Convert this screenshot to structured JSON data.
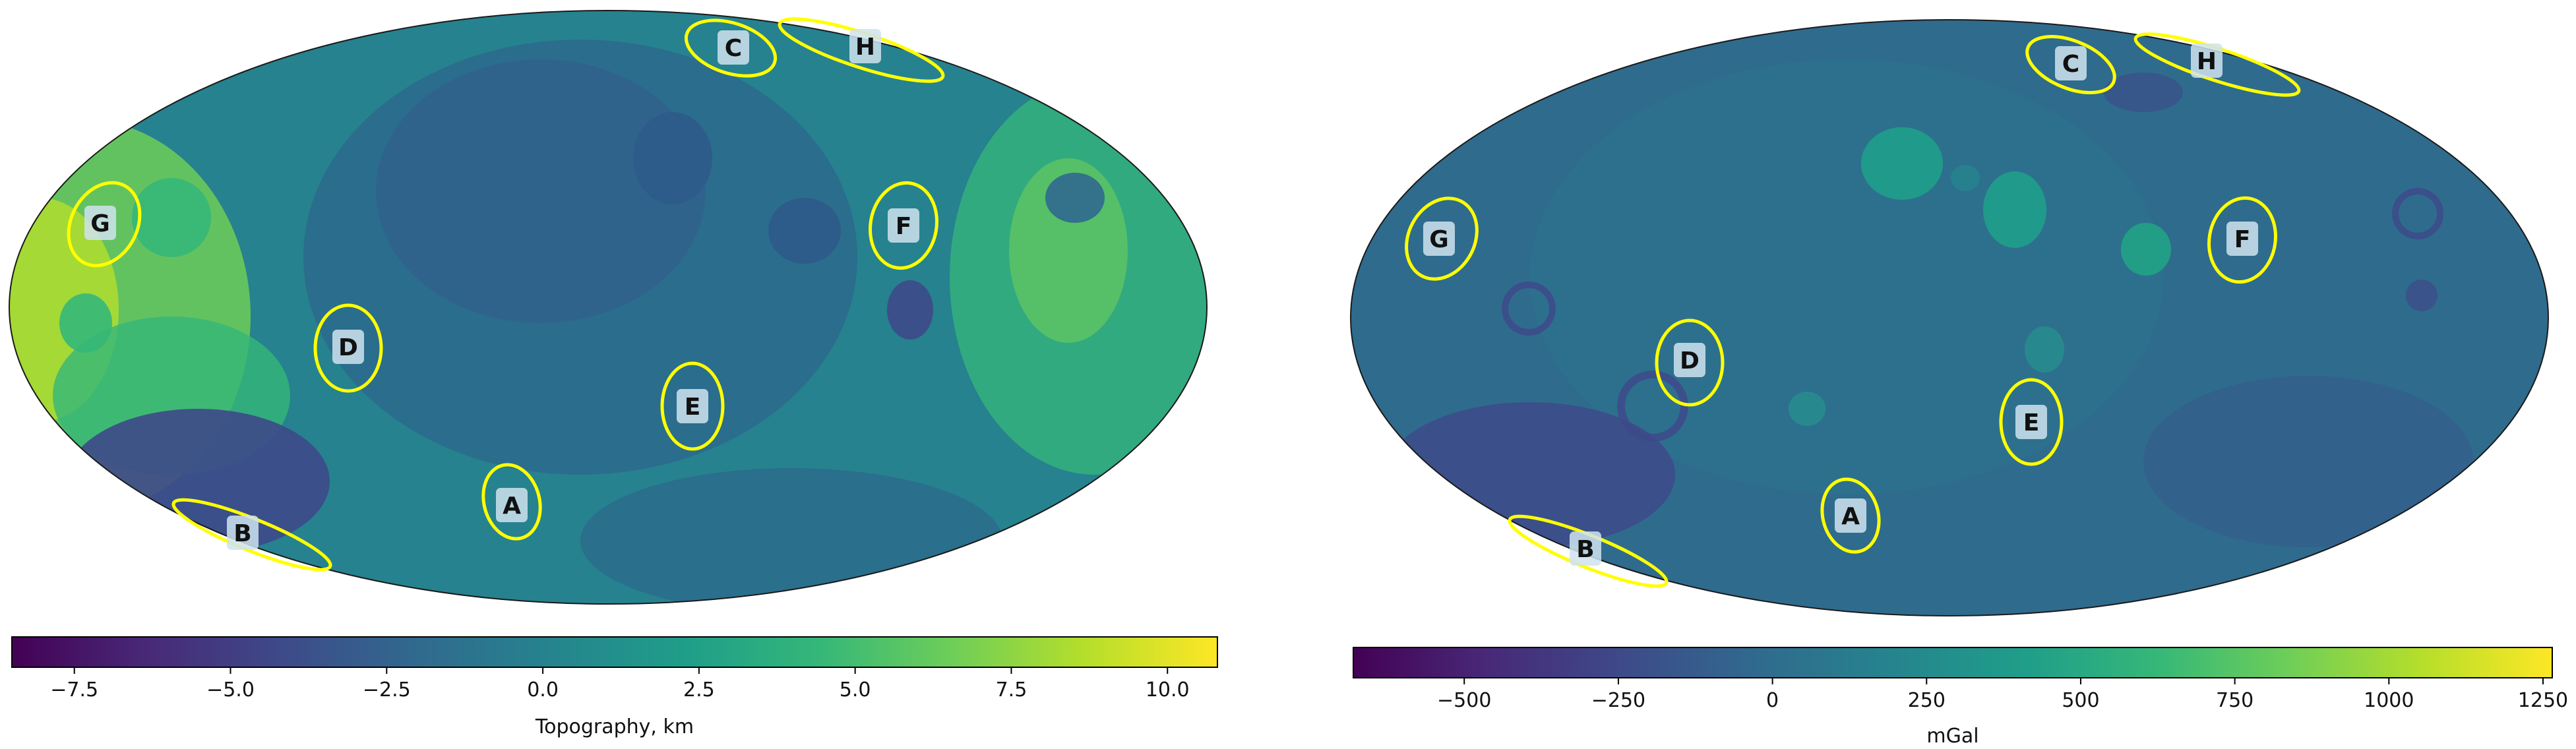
{
  "maps": [
    {
      "id": "topography",
      "colorbar": {
        "label": "Topography, km",
        "range": [
          -8.5,
          10.8
        ],
        "ticks": [
          "−7.5",
          "−5.0",
          "−2.5",
          "0.0",
          "2.5",
          "5.0",
          "7.5",
          "10.0"
        ],
        "tick_values": [
          -7.5,
          -5.0,
          -2.5,
          0.0,
          2.5,
          5.0,
          7.5,
          10.0
        ]
      },
      "markers": [
        {
          "label": "A"
        },
        {
          "label": "B"
        },
        {
          "label": "C"
        },
        {
          "label": "D"
        },
        {
          "label": "E"
        },
        {
          "label": "F"
        },
        {
          "label": "G"
        },
        {
          "label": "H"
        }
      ]
    },
    {
      "id": "gravity",
      "colorbar": {
        "label": "mGal",
        "range": [
          -680,
          1265
        ],
        "ticks": [
          "−500",
          "−250",
          "0",
          "250",
          "500",
          "750",
          "1000",
          "1250"
        ],
        "tick_values": [
          -500,
          -250,
          0,
          250,
          500,
          750,
          1000,
          1250
        ]
      },
      "markers": [
        {
          "label": "A"
        },
        {
          "label": "B"
        },
        {
          "label": "C"
        },
        {
          "label": "D"
        },
        {
          "label": "E"
        },
        {
          "label": "F"
        },
        {
          "label": "G"
        },
        {
          "label": "H"
        }
      ]
    }
  ],
  "colors": {
    "viridis": [
      "#440154",
      "#482878",
      "#3e4989",
      "#31688e",
      "#26828e",
      "#1f9e89",
      "#35b779",
      "#6ece58",
      "#b5de2b",
      "#fde725"
    ],
    "marker_ellipse": "#ffff00",
    "marker_label_bg": "#cfe3ee"
  }
}
